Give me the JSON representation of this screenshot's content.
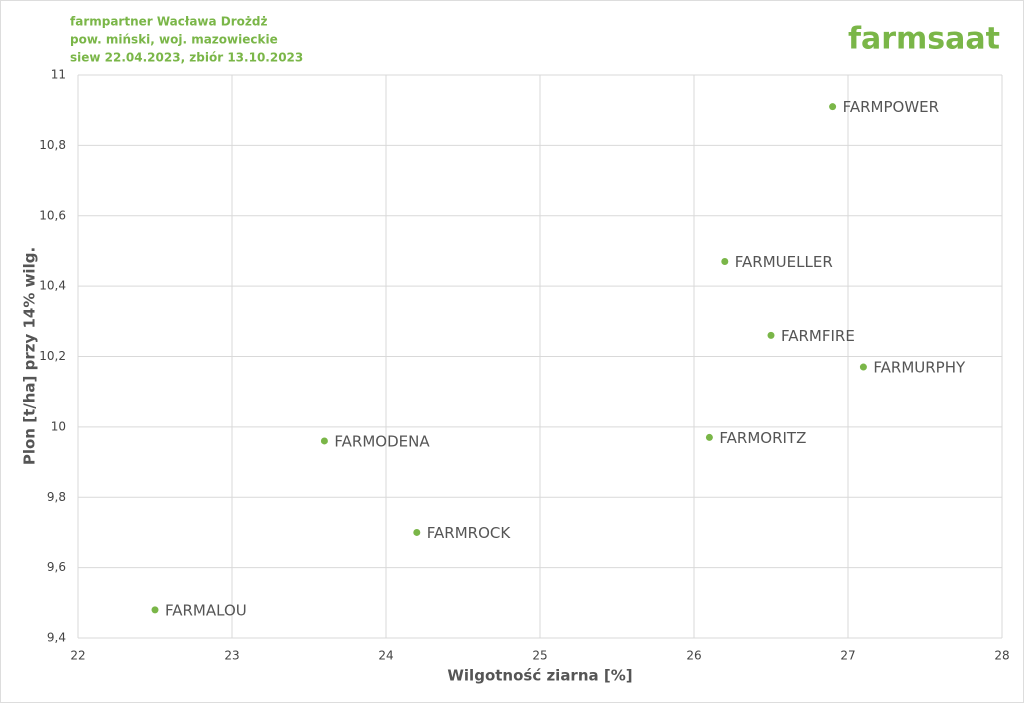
{
  "logo": "farmsaat",
  "chart_data": {
    "type": "scatter",
    "title": "farmpartner Wacława Drożdż",
    "subtitle": [
      "pow. miński, woj. mazowieckie",
      "siew 22.04.2023, zbiór 13.10.2023"
    ],
    "x_label": "Wilgotność ziarna [%]",
    "y_label": "Plon [t/ha] przy 14% wilg.",
    "labels": [
      "FARMPOWER",
      "FARMUELLER",
      "FARMFIRE",
      "FARMURPHY",
      "FARMORITZ",
      "FARMODENA",
      "FARMROCK",
      "FARMALOU"
    ],
    "x": [
      26.9,
      26.2,
      26.5,
      27.1,
      26.1,
      23.6,
      24.2,
      22.5
    ],
    "values": [
      10.91,
      10.47,
      10.26,
      10.17,
      9.97,
      9.96,
      9.7,
      9.48
    ],
    "color": "#7ab648",
    "xlim": [
      22,
      28
    ],
    "xticks": [
      22,
      23,
      24,
      25,
      26,
      27,
      28
    ],
    "ylim": [
      9.4,
      11
    ],
    "yticks": [
      {
        "value": 9.4,
        "label": "9,4"
      },
      {
        "value": 9.6,
        "label": "9,6"
      },
      {
        "value": 9.8,
        "label": "9,8"
      },
      10,
      {
        "value": 10.2,
        "label": "10,2"
      },
      {
        "value": 10.4,
        "label": "10,4"
      },
      {
        "value": 10.6,
        "label": "10,6"
      },
      {
        "value": 10.8,
        "label": "10,8"
      },
      11
    ],
    "grid": true
  }
}
